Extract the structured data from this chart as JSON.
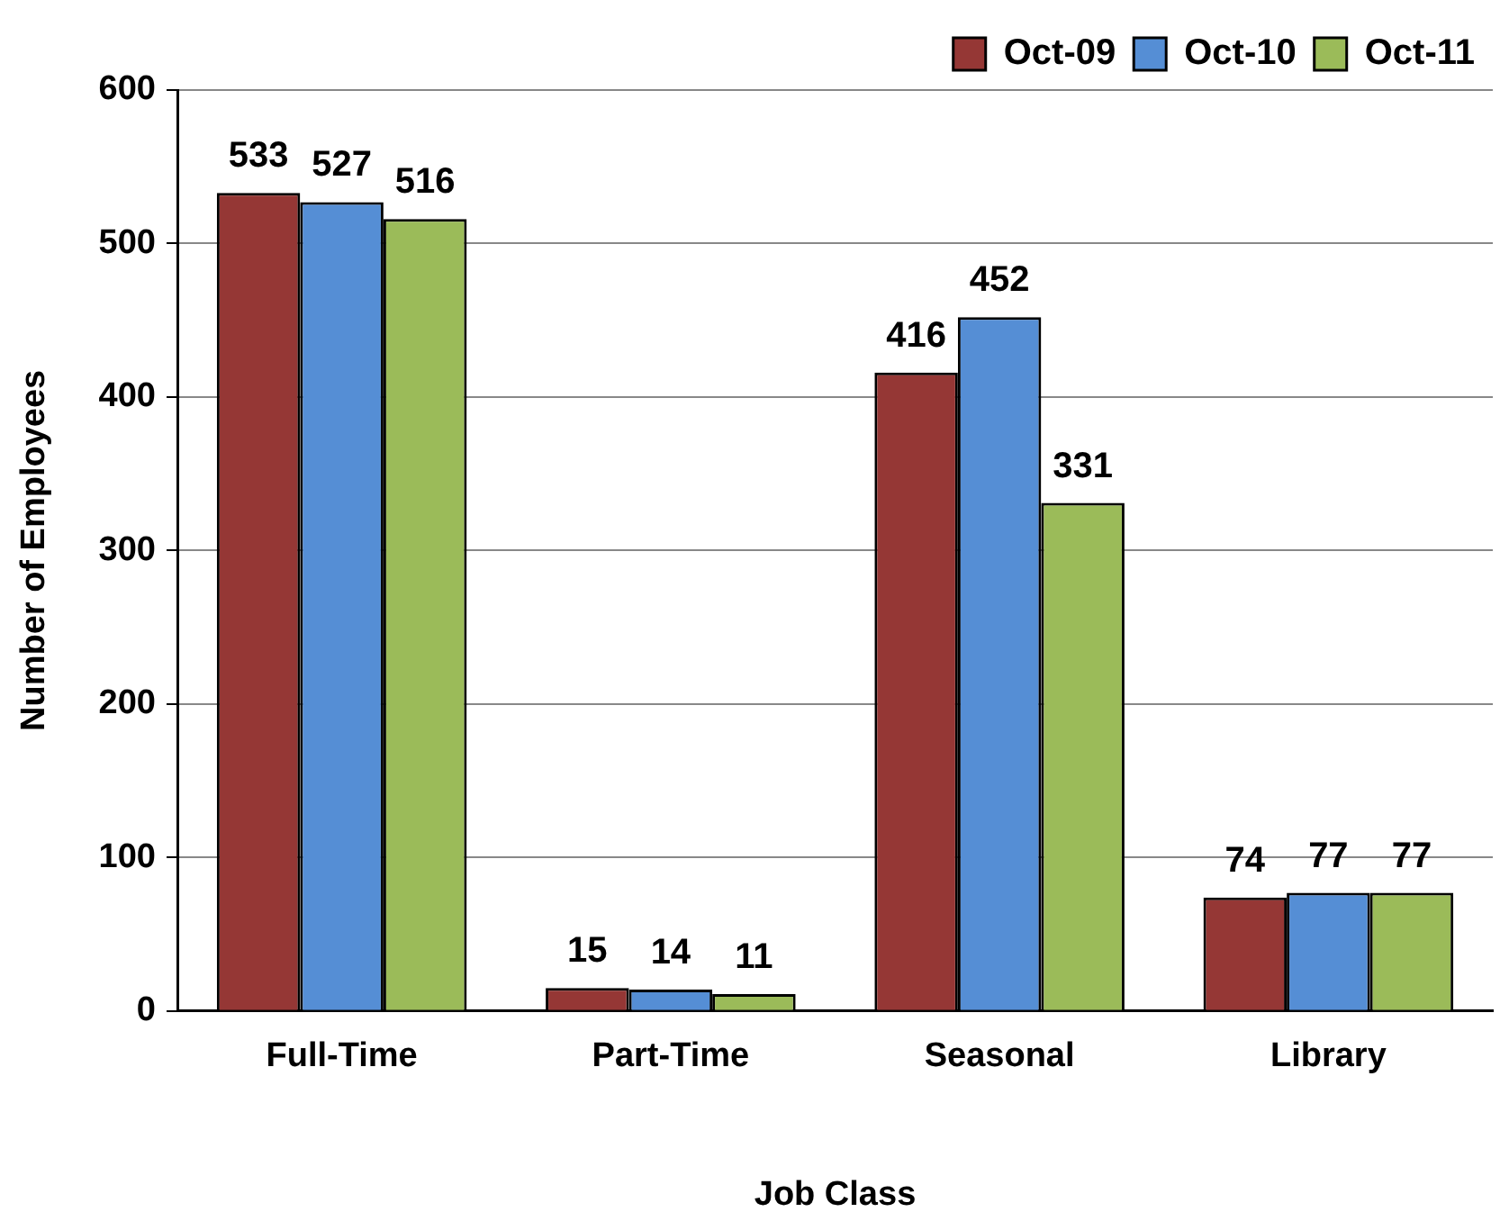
{
  "chart_data": {
    "type": "bar",
    "xlabel": "Job Class",
    "ylabel": "Number of Employees",
    "categories": [
      "Full-Time",
      "Part-Time",
      "Seasonal",
      "Library"
    ],
    "series": [
      {
        "name": "Oct-09",
        "color": "#953735",
        "values": [
          533,
          15,
          416,
          74
        ]
      },
      {
        "name": "Oct-10",
        "color": "#558ed5",
        "values": [
          527,
          14,
          452,
          77
        ]
      },
      {
        "name": "Oct-11",
        "color": "#9bbb59",
        "values": [
          516,
          11,
          331,
          77
        ]
      }
    ],
    "ylim": [
      0,
      600
    ],
    "yticks": [
      0,
      100,
      200,
      300,
      400,
      500,
      600
    ],
    "grid": "y",
    "legend": "top right",
    "data_labels": true
  }
}
